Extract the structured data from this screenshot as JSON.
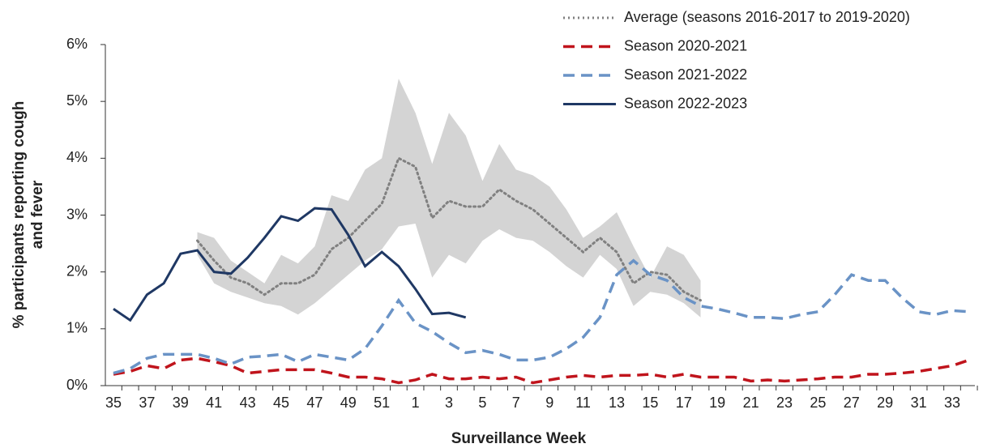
{
  "chart_data": {
    "type": "line",
    "ylabel": [
      "% participants reporting cough",
      "and fever"
    ],
    "xlabel": "Surveillance Week",
    "categories": [
      "35",
      null,
      "37",
      null,
      "39",
      null,
      "41",
      null,
      "43",
      null,
      "45",
      null,
      "47",
      null,
      "49",
      null,
      "51",
      null,
      "1",
      null,
      "3",
      null,
      "5",
      null,
      "7",
      null,
      "9",
      null,
      "11",
      null,
      "13",
      null,
      "15",
      null,
      "17",
      null,
      "19",
      null,
      "21",
      null,
      "23",
      null,
      "25",
      null,
      "27",
      null,
      "29",
      null,
      "31",
      null,
      "33",
      null
    ],
    "ylim": [
      0,
      6
    ],
    "yticks": [
      {
        "value": 0,
        "label": "0%"
      },
      {
        "value": 1,
        "label": "1%"
      },
      {
        "value": 2,
        "label": "2%"
      },
      {
        "value": 3,
        "label": "3%"
      },
      {
        "value": 4,
        "label": "4%"
      },
      {
        "value": 5,
        "label": "5%"
      },
      {
        "value": 6,
        "label": "6%"
      }
    ],
    "grid": false,
    "legend": "top-right",
    "band": {
      "color": "#d4d4d4",
      "upper": [
        null,
        null,
        null,
        null,
        null,
        2.7,
        2.6,
        2.2,
        2.0,
        1.8,
        2.3,
        2.15,
        2.45,
        3.35,
        3.25,
        3.8,
        4.0,
        5.4,
        4.8,
        3.9,
        4.8,
        4.4,
        3.6,
        4.25,
        3.8,
        3.7,
        3.5,
        3.1,
        2.6,
        2.8,
        3.05,
        2.45,
        1.9,
        2.45,
        2.3,
        1.85,
        null,
        null,
        null,
        null,
        null,
        null,
        null,
        null,
        null,
        null,
        null,
        null,
        null,
        null,
        null,
        null
      ],
      "lower": [
        null,
        null,
        null,
        null,
        null,
        2.3,
        1.8,
        1.65,
        1.55,
        1.45,
        1.4,
        1.25,
        1.45,
        1.7,
        1.95,
        2.2,
        2.4,
        2.8,
        2.85,
        1.9,
        2.3,
        2.15,
        2.55,
        2.75,
        2.6,
        2.55,
        2.35,
        2.1,
        1.9,
        2.3,
        2.05,
        1.4,
        1.65,
        1.6,
        1.45,
        1.2,
        null,
        null,
        null,
        null,
        null,
        null,
        null,
        null,
        null,
        null,
        null,
        null,
        null,
        null,
        null,
        null
      ]
    },
    "series": [
      {
        "name": "Average (seasons 2016-2017 to 2019-2020)",
        "color": "#808080",
        "dash": "dotted",
        "values": [
          null,
          null,
          null,
          null,
          null,
          2.55,
          2.2,
          1.9,
          1.8,
          1.6,
          1.8,
          1.8,
          1.95,
          2.4,
          2.6,
          2.9,
          3.2,
          4.0,
          3.85,
          2.95,
          3.25,
          3.15,
          3.15,
          3.45,
          3.25,
          3.1,
          2.85,
          2.6,
          2.35,
          2.6,
          2.35,
          1.8,
          2.0,
          1.95,
          1.65,
          1.5,
          null,
          null,
          null,
          null,
          null,
          null,
          null,
          null,
          null,
          null,
          null,
          null,
          null,
          null,
          null,
          null
        ]
      },
      {
        "name": "Season 2020-2021",
        "color": "#c0141c",
        "dash": "dashed",
        "values": [
          0.2,
          0.25,
          0.35,
          0.3,
          0.45,
          0.48,
          0.42,
          0.35,
          0.22,
          0.25,
          0.28,
          0.28,
          0.28,
          0.22,
          0.15,
          0.15,
          0.12,
          0.05,
          0.1,
          0.2,
          0.12,
          0.12,
          0.15,
          0.12,
          0.15,
          0.05,
          0.1,
          0.15,
          0.18,
          0.15,
          0.18,
          0.18,
          0.2,
          0.15,
          0.2,
          0.15,
          0.15,
          0.15,
          0.08,
          0.1,
          0.08,
          0.1,
          0.12,
          0.15,
          0.15,
          0.2,
          0.2,
          0.22,
          0.25,
          0.3,
          0.35,
          0.45
        ]
      },
      {
        "name": "Season 2021-2022",
        "color": "#6a93c6",
        "dash": "dashed",
        "values": [
          0.22,
          0.3,
          0.48,
          0.55,
          0.55,
          0.55,
          0.48,
          0.38,
          0.5,
          0.52,
          0.55,
          0.42,
          0.55,
          0.5,
          0.45,
          0.65,
          1.05,
          1.5,
          1.1,
          0.95,
          0.75,
          0.58,
          0.62,
          0.55,
          0.45,
          0.45,
          0.5,
          0.65,
          0.85,
          1.2,
          1.95,
          2.2,
          1.95,
          1.85,
          1.55,
          1.4,
          1.35,
          1.28,
          1.2,
          1.2,
          1.18,
          1.25,
          1.3,
          1.6,
          1.95,
          1.85,
          1.85,
          1.55,
          1.3,
          1.25,
          1.32,
          1.3
        ]
      },
      {
        "name": "Season 2022-2023",
        "color": "#1f3864",
        "dash": "solid",
        "values": [
          1.35,
          1.15,
          1.6,
          1.8,
          2.32,
          2.38,
          2.0,
          1.97,
          2.25,
          2.6,
          2.98,
          2.9,
          3.12,
          3.1,
          2.65,
          2.1,
          2.35,
          2.1,
          1.7,
          1.26,
          1.28,
          1.2,
          null,
          null,
          null,
          null,
          null,
          null,
          null,
          null,
          null,
          null,
          null,
          null,
          null,
          null,
          null,
          null,
          null,
          null,
          null,
          null,
          null,
          null,
          null,
          null,
          null,
          null,
          null,
          null,
          null,
          null
        ]
      }
    ]
  }
}
